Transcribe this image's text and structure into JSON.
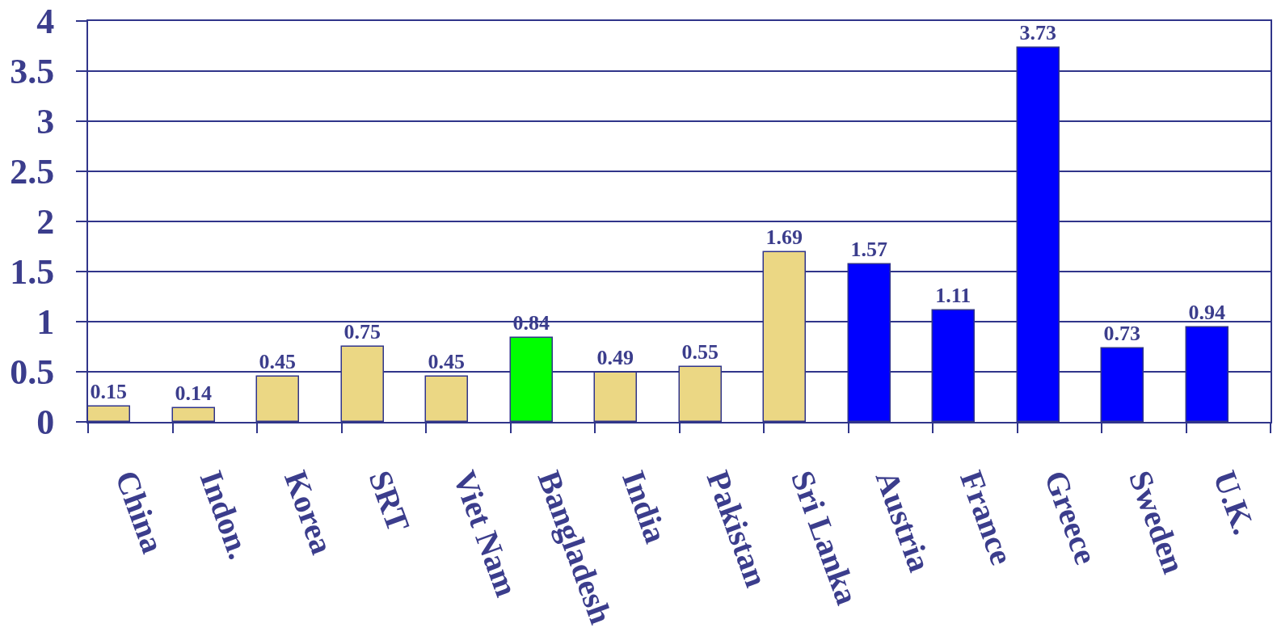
{
  "chart_data": {
    "type": "bar",
    "categories": [
      "China",
      "Indon.",
      "Korea",
      "SRT",
      "Viet Nam",
      "Bangladesh",
      "India",
      "Pakistan",
      "Sri Lanka",
      "Austria",
      "France",
      "Greece",
      "Sweden",
      "U.K."
    ],
    "values": [
      0.15,
      0.14,
      0.45,
      0.75,
      0.45,
      0.84,
      0.49,
      0.55,
      1.69,
      1.57,
      1.11,
      3.73,
      0.73,
      0.94
    ],
    "colors": [
      "#ebd784",
      "#ebd784",
      "#ebd784",
      "#ebd784",
      "#ebd784",
      "#00ff00",
      "#ebd784",
      "#ebd784",
      "#ebd784",
      "#0000ff",
      "#0000ff",
      "#0000ff",
      "#0000ff",
      "#0000ff"
    ],
    "ylim": [
      0,
      4
    ],
    "yticks": [
      0,
      0.5,
      1,
      1.5,
      2,
      2.5,
      3,
      3.5,
      4
    ],
    "grid": "y",
    "data_labels": true
  }
}
